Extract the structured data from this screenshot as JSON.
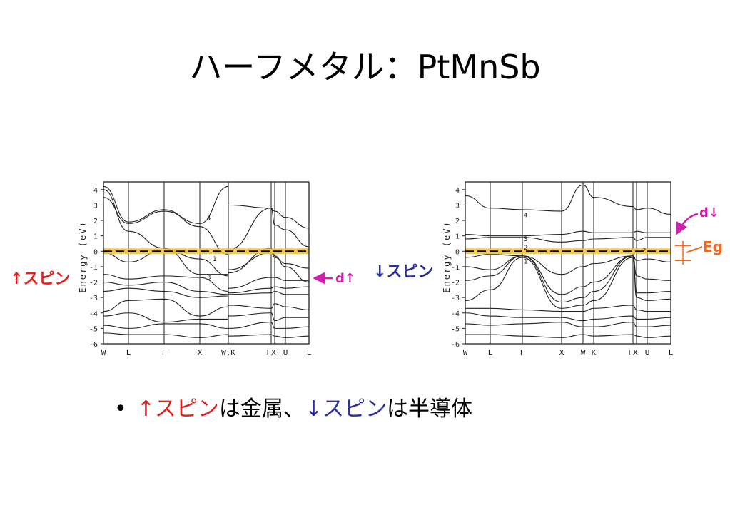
{
  "slide": {
    "title": "ハーフメタル：PtMnSb"
  },
  "colors": {
    "up": "#e4201e",
    "down": "#2b2fa0",
    "d_label": "#d020b0",
    "eg": "#f06a20",
    "fermi": "#f7c23a",
    "ink": "#222222"
  },
  "chart_data": [
    {
      "type": "line",
      "panel": "up",
      "ylabel": "Energy (eV)",
      "ylim": [
        -6,
        4.5
      ],
      "yticks": [
        4,
        3,
        2,
        1,
        0,
        -1,
        -2,
        -3,
        -4,
        -5,
        -6
      ],
      "kpoints": [
        "W",
        "L",
        "Γ",
        "X",
        "W",
        "K",
        "Γ",
        "X",
        "U",
        "L"
      ],
      "kpoint_labels": [
        "W",
        "L",
        "Γ",
        "X",
        "W,K",
        "ΓX",
        "U",
        "L"
      ],
      "band_labels": [
        {
          "text": "4",
          "x": 3.2,
          "y": 2.2
        },
        {
          "text": "1",
          "x": 3.4,
          "y": -0.45
        },
        {
          "text": "3",
          "x": 3.2,
          "y": -1.65
        }
      ],
      "fermi_level": 0,
      "series": [
        {
          "values": [
            4.0,
            1.3,
            0.2,
            -1.5,
            -1.5,
            -1.4,
            0.2,
            -0.3,
            -1.0,
            -2.0
          ]
        },
        {
          "values": [
            3.5,
            1.8,
            2.6,
            1.8,
            4.2,
            3.0,
            2.8,
            2.6,
            2.2,
            1.5
          ]
        },
        {
          "values": [
            4.2,
            1.9,
            2.7,
            1.6,
            -0.2,
            0.1,
            2.8,
            1.7,
            1.4,
            0.3
          ]
        },
        {
          "values": [
            -0.1,
            -0.7,
            0.1,
            -0.5,
            -1.6,
            -1.2,
            -0.1,
            -0.4,
            -0.8,
            -1.1
          ]
        },
        {
          "values": [
            -1.5,
            -1.8,
            -1.6,
            -1.7,
            -2.6,
            -2.4,
            -1.7,
            -1.7,
            -1.9,
            -1.9
          ]
        },
        {
          "values": [
            -2.0,
            -2.2,
            -2.0,
            -2.6,
            -2.8,
            -2.7,
            -2.4,
            -2.3,
            -2.4,
            -2.3
          ]
        },
        {
          "values": [
            -2.6,
            -2.4,
            -2.6,
            -3.0,
            -2.9,
            -2.8,
            -2.7,
            -2.6,
            -2.8,
            -2.8
          ]
        },
        {
          "values": [
            -3.9,
            -3.2,
            -3.1,
            -4.2,
            -3.6,
            -3.5,
            -3.7,
            -3.4,
            -3.6,
            -3.8
          ]
        },
        {
          "values": [
            -4.2,
            -4.0,
            -4.6,
            -4.4,
            -4.4,
            -4.2,
            -4.0,
            -4.5,
            -4.3,
            -4.3
          ]
        },
        {
          "values": [
            -4.8,
            -5.0,
            -4.7,
            -4.7,
            -5.0,
            -5.0,
            -4.6,
            -5.0,
            -5.0,
            -4.9
          ]
        },
        {
          "values": [
            -5.3,
            -5.4,
            -5.4,
            -5.6,
            -5.4,
            -5.5,
            -5.4,
            -5.5,
            -5.6,
            -5.5
          ]
        }
      ]
    },
    {
      "type": "line",
      "panel": "down",
      "ylabel": "Energy (eV)",
      "ylim": [
        -6,
        4.5
      ],
      "yticks": [
        4,
        3,
        2,
        1,
        0,
        -1,
        -2,
        -3,
        -4,
        -5,
        -6
      ],
      "kpoints": [
        "W",
        "L",
        "Γ",
        "X",
        "W",
        "K",
        "Γ",
        "X",
        "U",
        "L"
      ],
      "kpoint_labels": [
        "W",
        "L",
        "Γ",
        "X",
        "W",
        "K",
        "ΓX",
        "U",
        "L"
      ],
      "band_labels": [
        {
          "text": "4",
          "x": 2.0,
          "y": 2.4
        },
        {
          "text": "3",
          "x": 2.0,
          "y": 0.85
        },
        {
          "text": "2",
          "x": 2.0,
          "y": 0.3
        },
        {
          "text": "1",
          "x": 2.0,
          "y": -0.6
        },
        {
          "text": "2",
          "x": 7.4,
          "y": 0.1
        }
      ],
      "fermi_level": 0,
      "series": [
        {
          "values": [
            3.6,
            2.8,
            2.7,
            2.6,
            4.3,
            3.5,
            2.9,
            2.7,
            2.8,
            2.4
          ]
        },
        {
          "values": [
            1.1,
            1.0,
            1.0,
            1.1,
            1.3,
            1.2,
            1.2,
            1.3,
            1.2,
            1.2
          ]
        },
        {
          "values": [
            0.8,
            0.9,
            0.9,
            0.6,
            0.7,
            0.8,
            0.9,
            0.7,
            0.9,
            0.9
          ]
        },
        {
          "values": [
            -0.4,
            -0.2,
            -0.3,
            -1.5,
            -1.0,
            -0.8,
            -0.3,
            -0.6,
            -0.5,
            -0.7
          ]
        },
        {
          "values": [
            -1.0,
            -1.2,
            -0.3,
            -2.8,
            -2.3,
            -2.0,
            -0.3,
            -1.6,
            -1.8,
            -1.9
          ]
        },
        {
          "values": [
            -1.9,
            -1.6,
            -0.3,
            -3.3,
            -3.0,
            -2.6,
            -0.3,
            -2.7,
            -2.7,
            -2.6
          ]
        },
        {
          "values": [
            -3.2,
            -2.5,
            -0.4,
            -3.7,
            -3.5,
            -3.2,
            -0.4,
            -3.0,
            -3.2,
            -3.1
          ]
        },
        {
          "values": [
            -3.7,
            -3.7,
            -3.8,
            -3.9,
            -3.9,
            -3.7,
            -3.5,
            -3.8,
            -3.9,
            -3.9
          ]
        },
        {
          "values": [
            -4.0,
            -4.2,
            -4.3,
            -4.3,
            -4.5,
            -4.4,
            -4.2,
            -4.4,
            -4.4,
            -4.3
          ]
        },
        {
          "values": [
            -4.7,
            -4.8,
            -4.7,
            -4.6,
            -4.9,
            -4.9,
            -4.6,
            -4.9,
            -4.9,
            -4.8
          ]
        },
        {
          "values": [
            -5.4,
            -5.4,
            -5.5,
            -5.6,
            -5.4,
            -5.5,
            -5.4,
            -5.5,
            -5.6,
            -5.5
          ]
        }
      ]
    }
  ],
  "annotations": {
    "up_spin": "↑スピン",
    "down_spin": "↓スピン",
    "d_up": "d↑",
    "d_down": "d↓",
    "eg": "Eg"
  },
  "bullet": {
    "marker": "•",
    "up": "↑スピン",
    "text1": "は金属、",
    "down": "↓スピン",
    "text2": "は半導体"
  }
}
